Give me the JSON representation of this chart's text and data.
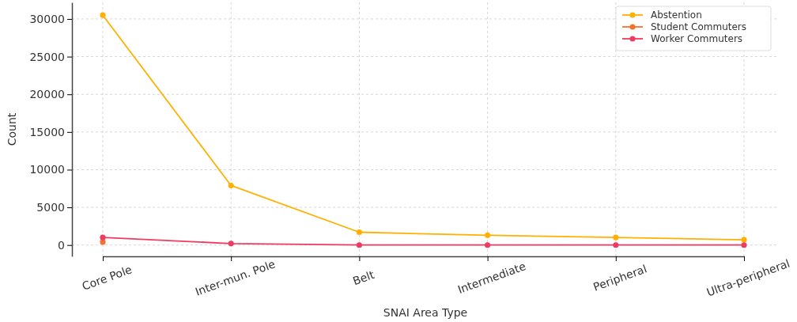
{
  "chart_data": {
    "type": "line",
    "xlabel": "SNAI Area Type",
    "ylabel": "Count",
    "categories": [
      "Core Pole",
      "Inter-mun. Pole",
      "Belt",
      "Intermediate",
      "Peripheral",
      "Ultra-peripheral"
    ],
    "series": [
      {
        "name": "Abstention",
        "color": "#ffb000",
        "values": [
          30500,
          7900,
          1700,
          1300,
          1000,
          700
        ]
      },
      {
        "name": "Student Commuters",
        "color": "#f4722b",
        "values": [
          400,
          null,
          null,
          null,
          null,
          null
        ]
      },
      {
        "name": "Worker Commuters",
        "color": "#f03a5f",
        "values": [
          1000,
          200,
          0,
          0,
          0,
          0
        ]
      }
    ],
    "ylim": [
      -1500,
      32200
    ],
    "yticks": [
      0,
      5000,
      10000,
      15000,
      20000,
      25000,
      30000
    ],
    "grid": true,
    "legend": "top right",
    "marker": "circle",
    "line_style": "solid"
  }
}
